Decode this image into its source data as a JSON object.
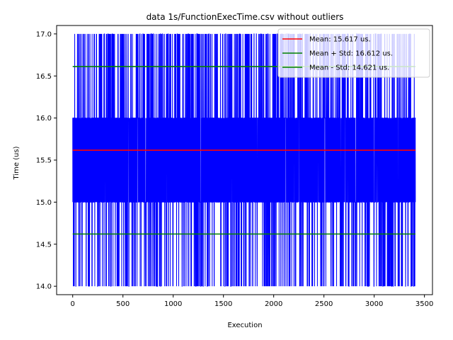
{
  "chart_data": {
    "type": "line",
    "title": "data 1s/FunctionExecTime.csv without outliers",
    "xlabel": "Execution",
    "ylabel": "Time (us)",
    "xlim": [
      -160,
      3580
    ],
    "ylim": [
      13.9,
      17.1
    ],
    "xticks": [
      0,
      500,
      1000,
      1500,
      2000,
      2500,
      3000,
      3500
    ],
    "yticks": [
      14.0,
      14.5,
      15.0,
      15.5,
      16.0,
      16.5,
      17.0
    ],
    "xtick_labels": [
      "0",
      "500",
      "1000",
      "1500",
      "2000",
      "2500",
      "3000",
      "3500"
    ],
    "ytick_labels": [
      "14.0",
      "14.5",
      "15.0",
      "15.5",
      "16.0",
      "16.5",
      "17.0"
    ],
    "grid": false,
    "legend_position": "top-right",
    "raw_series": {
      "color": "#0000ff",
      "x_range": [
        0,
        3410
      ],
      "value_levels": [
        14,
        15,
        16,
        17
      ],
      "dense_band": [
        15,
        16
      ]
    },
    "series": [
      {
        "name": "Mean: 15.617 us.",
        "value": 15.617,
        "color": "#ff0000"
      },
      {
        "name": "Mean + Std:  16.612 us.",
        "value": 16.612,
        "color": "#008000"
      },
      {
        "name": "Mean - Std:  14.621 us.",
        "value": 14.621,
        "color": "#008000"
      }
    ]
  }
}
